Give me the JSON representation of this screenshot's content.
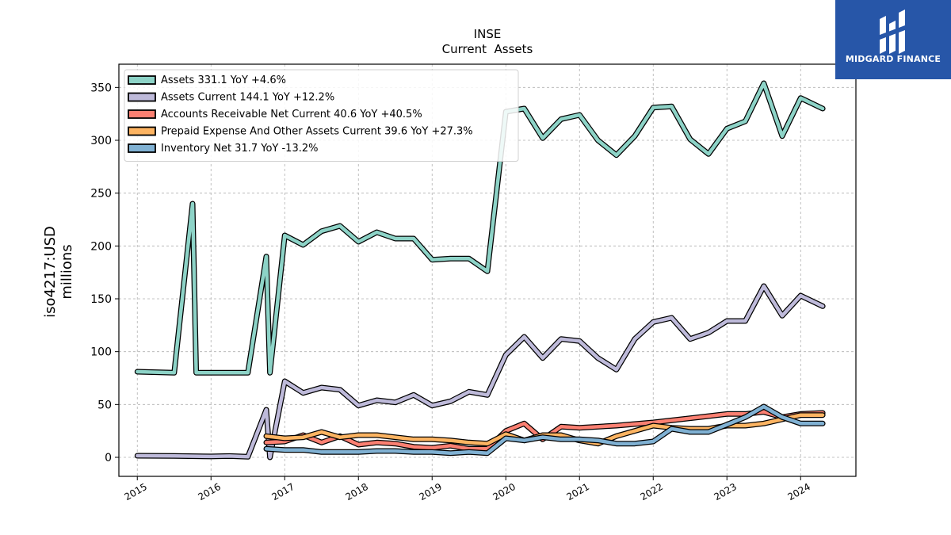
{
  "logo": {
    "text": "MIDGARD FINANCE"
  },
  "chart_data": {
    "type": "line",
    "title": "INSE",
    "subtitle": "Current  Assets",
    "ylabel": "iso4217:USD",
    "ylabel2": "millions",
    "xlabel": "",
    "xlim": [
      2014.75,
      2024.75
    ],
    "ylim": [
      -18,
      372
    ],
    "grid": true,
    "legend_position": "top-left",
    "x_ticks": [
      2015,
      2016,
      2017,
      2018,
      2019,
      2020,
      2021,
      2022,
      2023,
      2024
    ],
    "x_tick_labels": [
      "2015",
      "2016",
      "2017",
      "2018",
      "2019",
      "2020",
      "2021",
      "2022",
      "2023",
      "2024"
    ],
    "y_ticks": [
      0,
      50,
      100,
      150,
      200,
      250,
      300,
      350
    ],
    "y_tick_labels": [
      "0",
      "50",
      "100",
      "150",
      "200",
      "250",
      "300",
      "350"
    ],
    "series": [
      {
        "name": "Assets  331.1 YoY +4.6%",
        "color": "#8dd3c7",
        "x": [
          2015.0,
          2015.5,
          2015.75,
          2015.8,
          2016.0,
          2016.5,
          2016.75,
          2016.8,
          2017.0,
          2017.25,
          2017.5,
          2017.75,
          2018.0,
          2018.25,
          2018.5,
          2018.75,
          2019.0,
          2019.25,
          2019.5,
          2019.75,
          2020.0,
          2020.25,
          2020.5,
          2020.75,
          2021.0,
          2021.25,
          2021.5,
          2021.75,
          2022.0,
          2022.25,
          2022.5,
          2022.75,
          2023.0,
          2023.25,
          2023.5,
          2023.75,
          2024.0,
          2024.3
        ],
        "y": [
          81,
          80,
          240,
          80,
          80,
          80,
          190,
          80,
          210,
          201,
          214,
          219,
          204,
          213,
          207,
          207,
          187,
          188,
          188,
          176,
          327,
          330,
          302,
          320,
          324,
          300,
          286,
          304,
          331,
          332,
          301,
          287,
          311,
          318,
          354,
          304,
          340,
          330
        ]
      },
      {
        "name": "Assets Current  144.1 YoY +12.2%",
        "color": "#bebada",
        "x": [
          2015.0,
          2015.5,
          2016.0,
          2016.25,
          2016.5,
          2016.75,
          2016.8,
          2017.0,
          2017.25,
          2017.5,
          2017.75,
          2018.0,
          2018.25,
          2018.5,
          2018.75,
          2019.0,
          2019.25,
          2019.5,
          2019.75,
          2020.0,
          2020.25,
          2020.5,
          2020.75,
          2021.0,
          2021.25,
          2021.5,
          2021.75,
          2022.0,
          2022.25,
          2022.5,
          2022.75,
          2023.0,
          2023.25,
          2023.5,
          2023.75,
          2024.0,
          2024.3
        ],
        "y": [
          1.5,
          1.3,
          0.8,
          1.2,
          0.5,
          45,
          0,
          72,
          61,
          66,
          64,
          49,
          54,
          52,
          59,
          49,
          53,
          62,
          59,
          97,
          114,
          94,
          112,
          110,
          94,
          83,
          112,
          128,
          132,
          112,
          118,
          129,
          129,
          162,
          134,
          153,
          143
        ]
      },
      {
        "name": "Accounts Receivable Net Current  40.6 YoY +40.5%",
        "color": "#fb8072",
        "x": [
          2016.75,
          2017.0,
          2017.25,
          2017.5,
          2017.75,
          2018.0,
          2018.25,
          2018.5,
          2018.75,
          2019.0,
          2019.25,
          2019.5,
          2019.75,
          2020.0,
          2020.25,
          2020.5,
          2020.75,
          2021.0,
          2021.5,
          2022.0,
          2022.5,
          2023.0,
          2023.25,
          2023.5,
          2023.75,
          2024.0,
          2024.3
        ],
        "y": [
          14,
          15,
          21,
          14,
          20,
          12,
          14,
          13,
          10,
          9,
          11,
          8,
          8,
          25,
          32,
          17,
          29,
          28,
          30,
          33,
          37,
          41,
          41,
          43,
          38,
          41,
          42
        ]
      },
      {
        "name": "Prepaid Expense And Other Assets Current  39.6 YoY +27.3%",
        "color": "#fdb462",
        "x": [
          2016.75,
          2017.0,
          2017.25,
          2017.5,
          2017.75,
          2018.0,
          2018.25,
          2018.5,
          2018.75,
          2019.0,
          2019.25,
          2019.5,
          2019.75,
          2020.0,
          2020.25,
          2020.5,
          2020.75,
          2021.0,
          2021.25,
          2021.5,
          2022.0,
          2022.25,
          2022.5,
          2022.75,
          2023.0,
          2023.25,
          2023.5,
          2023.75,
          2024.0,
          2024.3
        ],
        "y": [
          20,
          18,
          19,
          24,
          19,
          21,
          21,
          19,
          17,
          17,
          16,
          14,
          13,
          22,
          16,
          21,
          21,
          16,
          13,
          20,
          30,
          28,
          27,
          27,
          30,
          30,
          32,
          36,
          40,
          40
        ]
      },
      {
        "name": "Inventory Net  31.7 YoY -13.2%",
        "color": "#80b1d3",
        "x": [
          2016.75,
          2017.0,
          2017.25,
          2017.5,
          2017.75,
          2018.0,
          2018.25,
          2018.5,
          2018.75,
          2019.0,
          2019.25,
          2019.5,
          2019.75,
          2020.0,
          2020.25,
          2020.5,
          2020.75,
          2021.0,
          2021.25,
          2021.5,
          2021.75,
          2022.0,
          2022.25,
          2022.5,
          2022.75,
          2023.0,
          2023.25,
          2023.5,
          2023.75,
          2024.0,
          2024.3
        ],
        "y": [
          8,
          7,
          7,
          5,
          5,
          5,
          6,
          6,
          5,
          5,
          4,
          5,
          4,
          18,
          16,
          19,
          17,
          17,
          16,
          13,
          13,
          15,
          27,
          24,
          24,
          31,
          38,
          48,
          38,
          32,
          32
        ]
      }
    ]
  }
}
